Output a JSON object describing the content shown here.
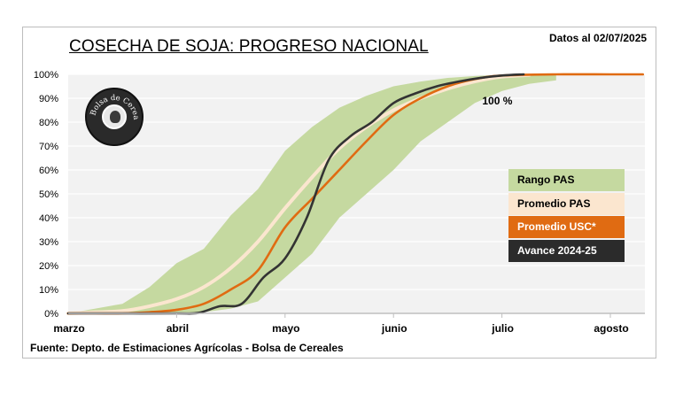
{
  "header": {
    "title": "COSECHA DE SOJA: PROGRESO NACIONAL",
    "date_label": "Datos al 02/07/2025"
  },
  "footer": {
    "source": "Fuente: Depto. de Estimaciones Agrícolas - Bolsa de Cereales"
  },
  "logo": {
    "text": "Bolsa de Cereales",
    "icon": "bolsa-de-cereales-seal-icon"
  },
  "colors": {
    "background": "#f2f2f2",
    "gridline": "#ffffff",
    "range_pas": "#c5d9a0",
    "promedio_pas": "#fbe6cf",
    "promedio_usc": "#e06b12",
    "avance": "#333333"
  },
  "chart_data": {
    "type": "area",
    "title": "COSECHA DE SOJA: PROGRESO NACIONAL",
    "xlabel": "",
    "ylabel": "",
    "x_unit": "months since start of marzo (0 = marzo, 1 = abril, ...)",
    "xlim": [
      0,
      5.3
    ],
    "ylim": [
      0,
      100
    ],
    "grid": true,
    "legend_position": "right",
    "x_tick_labels": [
      "marzo",
      "abril",
      "mayo",
      "junio",
      "julio",
      "agosto"
    ],
    "x_tick_values": [
      0,
      1,
      2,
      3,
      4,
      5
    ],
    "y_tick_labels": [
      "0%",
      "10%",
      "20%",
      "30%",
      "40%",
      "50%",
      "60%",
      "70%",
      "80%",
      "90%",
      "100%"
    ],
    "y_tick_values": [
      0,
      10,
      20,
      30,
      40,
      50,
      60,
      70,
      80,
      90,
      100
    ],
    "annotations": [
      {
        "text": "100 %",
        "x": 3.9,
        "y": 90
      }
    ],
    "series": [
      {
        "name": "Rango PAS",
        "kind": "band",
        "x": [
          0,
          0.25,
          0.5,
          0.75,
          1.0,
          1.25,
          1.5,
          1.75,
          2.0,
          2.25,
          2.5,
          2.75,
          3.0,
          3.25,
          3.5,
          3.75,
          4.0,
          4.25,
          4.5
        ],
        "upper": [
          0,
          2,
          4,
          11,
          21,
          27,
          41,
          52,
          68,
          78,
          86,
          91,
          95,
          97,
          98.5,
          99.3,
          99.8,
          100,
          100
        ],
        "lower": [
          0,
          0,
          0,
          0,
          0,
          0.5,
          2,
          5,
          15,
          25,
          40,
          50,
          60,
          72,
          80,
          88,
          93,
          96,
          97.5
        ]
      },
      {
        "name": "Promedio PAS",
        "kind": "line",
        "x": [
          0,
          0.25,
          0.5,
          0.75,
          1.0,
          1.25,
          1.5,
          1.75,
          2.0,
          2.25,
          2.5,
          2.75,
          3.0,
          3.25,
          3.5,
          3.75,
          4.0,
          4.25
        ],
        "values": [
          0,
          0.5,
          1,
          3,
          6,
          11,
          19,
          30,
          44,
          57,
          69,
          78,
          85,
          90,
          94,
          97,
          99,
          99.7
        ]
      },
      {
        "name": "Promedio  USC*",
        "kind": "line",
        "x": [
          0,
          0.25,
          0.5,
          0.75,
          1.0,
          1.25,
          1.5,
          1.75,
          2.0,
          2.25,
          2.5,
          2.75,
          3.0,
          3.25,
          3.5,
          3.75,
          4.0,
          4.5,
          5.0,
          5.3
        ],
        "values": [
          0,
          0,
          0,
          0.5,
          1.5,
          4,
          10,
          18,
          36,
          48,
          60,
          72,
          83,
          90,
          95,
          98,
          99.5,
          100,
          100,
          100
        ]
      },
      {
        "name": "Avance 2024-25",
        "kind": "line",
        "x": [
          0,
          0.5,
          1.0,
          1.2,
          1.4,
          1.6,
          1.8,
          2.0,
          2.2,
          2.4,
          2.6,
          2.8,
          3.0,
          3.2,
          3.4,
          3.6,
          3.8,
          4.0,
          4.2
        ],
        "values": [
          0,
          0,
          0,
          0.2,
          3,
          4,
          15,
          23,
          40,
          64,
          74,
          80,
          88,
          92,
          95,
          97,
          98.5,
          99.5,
          100
        ]
      }
    ]
  },
  "legend": {
    "items": [
      {
        "label": "Rango PAS",
        "bg": "#c5d9a0",
        "fg": "#000000"
      },
      {
        "label": "Promedio PAS",
        "bg": "#fbe6cf",
        "fg": "#000000"
      },
      {
        "label": "Promedio  USC*",
        "bg": "#e06b12",
        "fg": "#ffffff"
      },
      {
        "label": "Avance 2024-25",
        "bg": "#2b2b2b",
        "fg": "#ffffff"
      }
    ]
  }
}
